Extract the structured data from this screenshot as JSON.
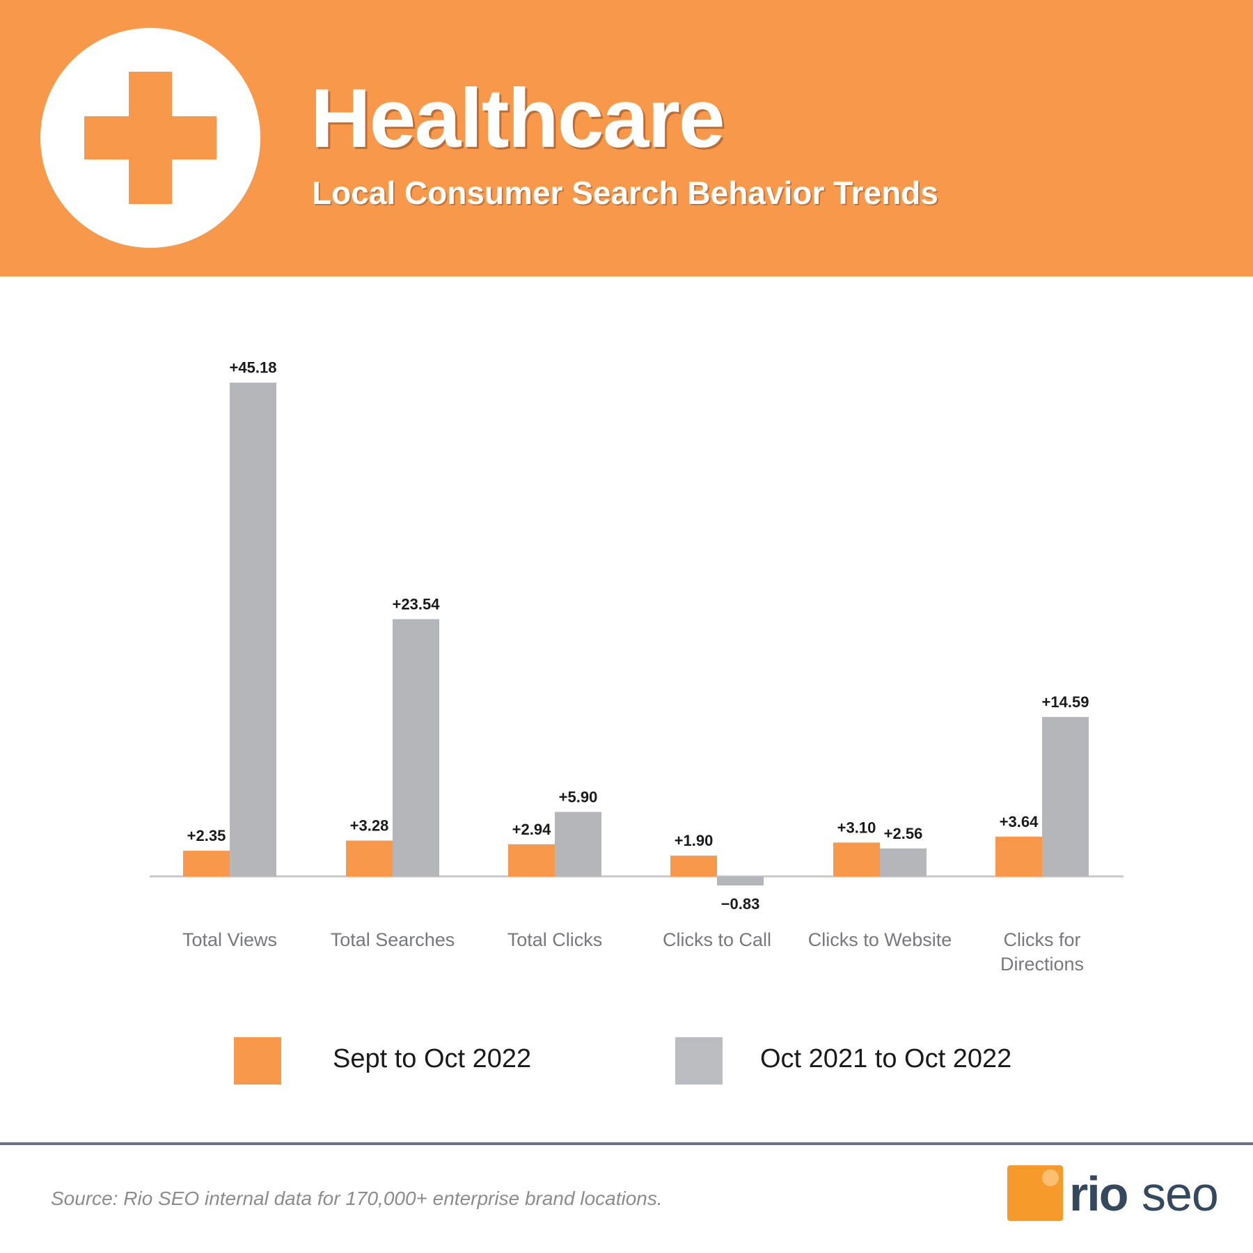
{
  "header": {
    "title": "Healthcare",
    "subtitle": "Local Consumer Search Behavior Trends",
    "icon": "medical-cross-icon"
  },
  "colors": {
    "orange": "#f7984b",
    "gray": "#b5b6ba",
    "axis": "#c8c8c8"
  },
  "chart_data": {
    "type": "bar",
    "title": "Healthcare",
    "xlabel": "",
    "ylabel": "",
    "categories": [
      "Total Views",
      "Total Searches",
      "Total Clicks",
      "Clicks to Call",
      "Clicks to Website",
      "Clicks for Directions"
    ],
    "series": [
      {
        "name": "Sept to Oct 2022",
        "values": [
          2.35,
          3.28,
          2.94,
          1.9,
          3.1,
          3.64
        ],
        "labels": [
          "+2.35",
          "+3.28",
          "+2.94",
          "+1.90",
          "+3.10",
          "+3.64"
        ]
      },
      {
        "name": "Oct 2021 to Oct 2022",
        "values": [
          45.18,
          23.54,
          5.9,
          -0.83,
          2.56,
          14.59
        ],
        "labels": [
          "+45.18",
          "+23.54",
          "+5.90",
          "−0.83",
          "+2.56",
          "+14.59"
        ]
      }
    ],
    "ylim": [
      -0.83,
      45.18
    ],
    "grid": false,
    "legend": "bottom"
  },
  "legend": {
    "items": [
      {
        "label": "Sept to Oct 2022"
      },
      {
        "label": "Oct 2021 to Oct 2022"
      }
    ]
  },
  "footer": {
    "source": "Source: Rio SEO internal data for 170,000+ enterprise brand locations.",
    "logo_rio": "rio",
    "logo_seo": "seo"
  }
}
